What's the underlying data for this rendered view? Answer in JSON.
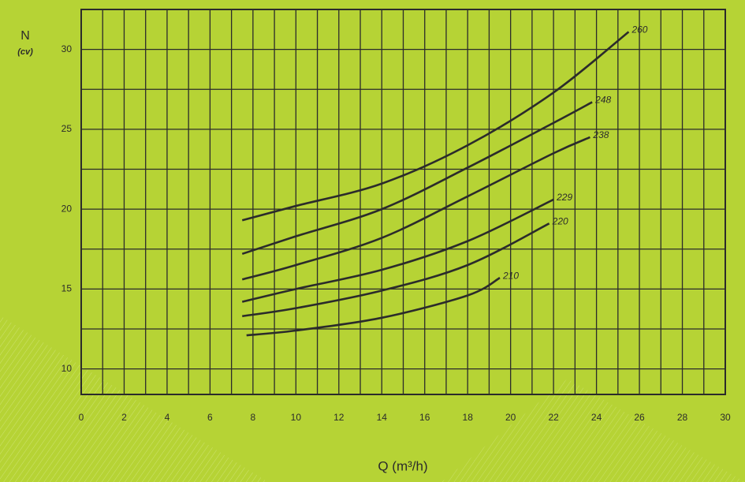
{
  "chart_data": {
    "type": "line",
    "y_label": "N",
    "y_unit": "(cv)",
    "x_label": "Q (m³/h)",
    "xlim": [
      0,
      30
    ],
    "xticks": [
      0,
      2,
      4,
      6,
      8,
      10,
      12,
      14,
      16,
      18,
      20,
      22,
      24,
      26,
      28,
      30
    ],
    "ylim": [
      8.4,
      32.5
    ],
    "yticks": [
      10,
      15,
      20,
      25,
      30
    ],
    "grid": true,
    "color": "#2b2b2b",
    "series": [
      {
        "name": "260",
        "x": [
          7.5,
          10,
          14,
          18,
          22,
          25.5
        ],
        "values": [
          19.3,
          20.2,
          21.6,
          24.0,
          27.3,
          31.1
        ]
      },
      {
        "name": "248",
        "x": [
          7.5,
          10,
          14,
          18,
          22,
          23.8
        ],
        "values": [
          17.2,
          18.3,
          20.0,
          22.6,
          25.4,
          26.7
        ]
      },
      {
        "name": "238",
        "x": [
          7.5,
          10,
          14,
          18,
          22,
          23.7
        ],
        "values": [
          15.6,
          16.5,
          18.2,
          20.8,
          23.5,
          24.5
        ]
      },
      {
        "name": "229",
        "x": [
          7.5,
          10,
          14,
          18,
          22
        ],
        "values": [
          14.2,
          15.0,
          16.2,
          18.0,
          20.6
        ]
      },
      {
        "name": "220",
        "x": [
          7.5,
          10,
          14,
          18,
          21.8
        ],
        "values": [
          13.3,
          13.8,
          14.9,
          16.5,
          19.1
        ]
      },
      {
        "name": "210",
        "x": [
          7.7,
          10,
          14,
          18,
          19.5
        ],
        "values": [
          12.1,
          12.4,
          13.2,
          14.6,
          15.7
        ]
      }
    ]
  }
}
